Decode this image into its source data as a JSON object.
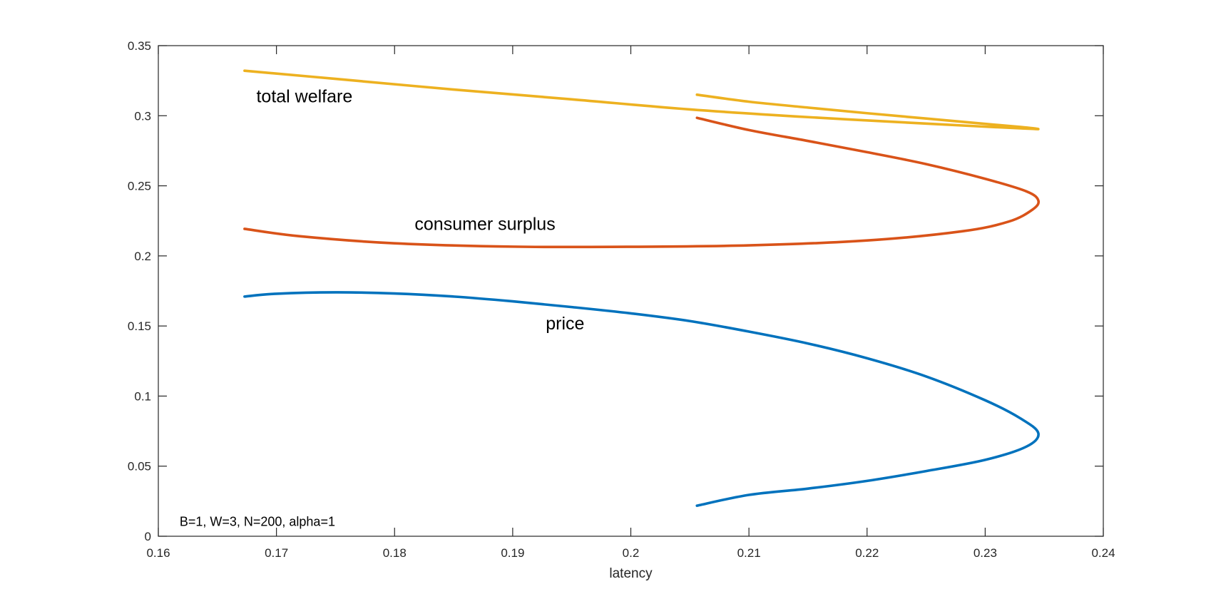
{
  "chart_data": {
    "type": "line",
    "title": "",
    "xlabel": "latency",
    "ylabel": "",
    "xlim": [
      0.16,
      0.24
    ],
    "ylim": [
      0,
      0.35
    ],
    "xticks": [
      "0.16",
      "0.17",
      "0.18",
      "0.19",
      "0.2",
      "0.21",
      "0.22",
      "0.23",
      "0.24"
    ],
    "yticks": [
      "0",
      "0.05",
      "0.1",
      "0.15",
      "0.2",
      "0.25",
      "0.3",
      "0.35"
    ],
    "grid": false,
    "annotation": "B=1, W=3, N=200, alpha=1",
    "series": [
      {
        "name": "total welfare",
        "color": "#EDB120",
        "label_at": [
          0.1683,
          0.3095
        ],
        "points": [
          [
            0.1673,
            0.3321
          ],
          [
            0.175,
            0.3263
          ],
          [
            0.185,
            0.3187
          ],
          [
            0.195,
            0.3117
          ],
          [
            0.205,
            0.3045
          ],
          [
            0.215,
            0.299
          ],
          [
            0.225,
            0.2944
          ],
          [
            0.23,
            0.2922
          ],
          [
            0.233,
            0.291
          ],
          [
            0.2345,
            0.2905
          ],
          [
            0.233,
            0.292
          ],
          [
            0.23,
            0.2942
          ],
          [
            0.225,
            0.298
          ],
          [
            0.22,
            0.3018
          ],
          [
            0.215,
            0.3058
          ],
          [
            0.21,
            0.31
          ],
          [
            0.2056,
            0.315
          ]
        ]
      },
      {
        "name": "consumer surplus",
        "color": "#D95319",
        "label_at": [
          0.1817,
          0.2185
        ],
        "points": [
          [
            0.1673,
            0.2193
          ],
          [
            0.172,
            0.214
          ],
          [
            0.18,
            0.209
          ],
          [
            0.19,
            0.2066
          ],
          [
            0.2,
            0.2065
          ],
          [
            0.21,
            0.2075
          ],
          [
            0.22,
            0.211
          ],
          [
            0.228,
            0.2175
          ],
          [
            0.232,
            0.2245
          ],
          [
            0.234,
            0.233
          ],
          [
            0.2345,
            0.2395
          ],
          [
            0.2335,
            0.246
          ],
          [
            0.23,
            0.255
          ],
          [
            0.225,
            0.2655
          ],
          [
            0.22,
            0.274
          ],
          [
            0.215,
            0.282
          ],
          [
            0.21,
            0.2898
          ],
          [
            0.2056,
            0.2985
          ]
        ]
      },
      {
        "name": "price",
        "color": "#0072BD",
        "label_at": [
          0.1928,
          0.1475
        ],
        "points": [
          [
            0.1673,
            0.171
          ],
          [
            0.17,
            0.173
          ],
          [
            0.175,
            0.174
          ],
          [
            0.18,
            0.1732
          ],
          [
            0.185,
            0.171
          ],
          [
            0.19,
            0.1676
          ],
          [
            0.195,
            0.1635
          ],
          [
            0.2,
            0.159
          ],
          [
            0.205,
            0.1535
          ],
          [
            0.21,
            0.146
          ],
          [
            0.215,
            0.1375
          ],
          [
            0.22,
            0.127
          ],
          [
            0.225,
            0.114
          ],
          [
            0.23,
            0.097
          ],
          [
            0.233,
            0.084
          ],
          [
            0.2345,
            0.0735
          ],
          [
            0.2335,
            0.064
          ],
          [
            0.23,
            0.0545
          ],
          [
            0.225,
            0.0465
          ],
          [
            0.22,
            0.0395
          ],
          [
            0.215,
            0.034
          ],
          [
            0.21,
            0.0295
          ],
          [
            0.2056,
            0.0218
          ]
        ]
      }
    ]
  }
}
